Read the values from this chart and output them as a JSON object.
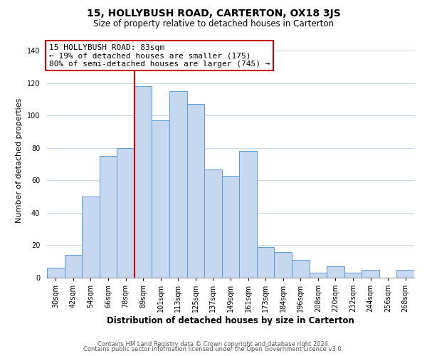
{
  "title": "15, HOLLYBUSH ROAD, CARTERTON, OX18 3JS",
  "subtitle": "Size of property relative to detached houses in Carterton",
  "xlabel": "Distribution of detached houses by size in Carterton",
  "ylabel": "Number of detached properties",
  "bar_labels": [
    "30sqm",
    "42sqm",
    "54sqm",
    "66sqm",
    "78sqm",
    "89sqm",
    "101sqm",
    "113sqm",
    "125sqm",
    "137sqm",
    "149sqm",
    "161sqm",
    "173sqm",
    "184sqm",
    "196sqm",
    "208sqm",
    "220sqm",
    "232sqm",
    "244sqm",
    "256sqm",
    "268sqm"
  ],
  "bar_heights": [
    6,
    14,
    50,
    75,
    80,
    118,
    97,
    115,
    107,
    67,
    63,
    78,
    19,
    16,
    11,
    3,
    7,
    3,
    5,
    0,
    5
  ],
  "bar_color": "#c5d8f0",
  "bar_edge_color": "#5b9bd5",
  "ylim": [
    0,
    145
  ],
  "yticks": [
    0,
    20,
    40,
    60,
    80,
    100,
    120,
    140
  ],
  "vline_color": "#cc0000",
  "vline_x_index": 4.5,
  "annotation_lines": [
    "15 HOLLYBUSH ROAD: 83sqm",
    "← 19% of detached houses are smaller (175)",
    "80% of semi-detached houses are larger (745) →"
  ],
  "annotation_box_color": "#cc0000",
  "footer_lines": [
    "Contains HM Land Registry data © Crown copyright and database right 2024.",
    "Contains public sector information licensed under the Open Government Licence v3.0."
  ],
  "background_color": "#ffffff",
  "grid_color": "#c8d8e8",
  "title_fontsize": 10,
  "subtitle_fontsize": 8.5,
  "xlabel_fontsize": 8.5,
  "ylabel_fontsize": 8,
  "tick_fontsize": 7,
  "annotation_fontsize": 8,
  "footer_fontsize": 6
}
